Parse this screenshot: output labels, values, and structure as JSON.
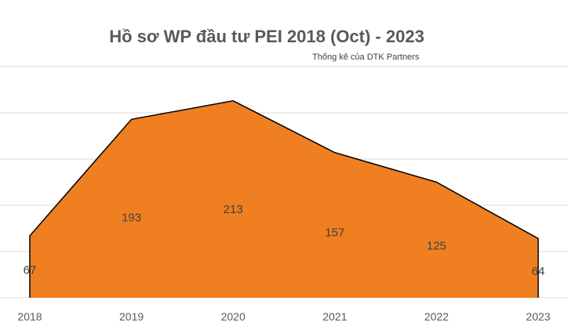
{
  "chart_data": {
    "type": "area",
    "title": "Hồ sơ WP đầu tư PEI 2018 (Oct) - 2023",
    "subtitle": "Thống kê của DTK Partners",
    "categories": [
      "2018",
      "2019",
      "2020",
      "2021",
      "2022",
      "2023"
    ],
    "series": [
      {
        "values": [
          67,
          193,
          213,
          157,
          125,
          64
        ]
      }
    ],
    "ylim": [
      0,
      250
    ],
    "grid": true,
    "legend": "none",
    "colors": {
      "fill": "#F07F22",
      "outline": "#000000",
      "grid": "#D9D9D9"
    }
  }
}
